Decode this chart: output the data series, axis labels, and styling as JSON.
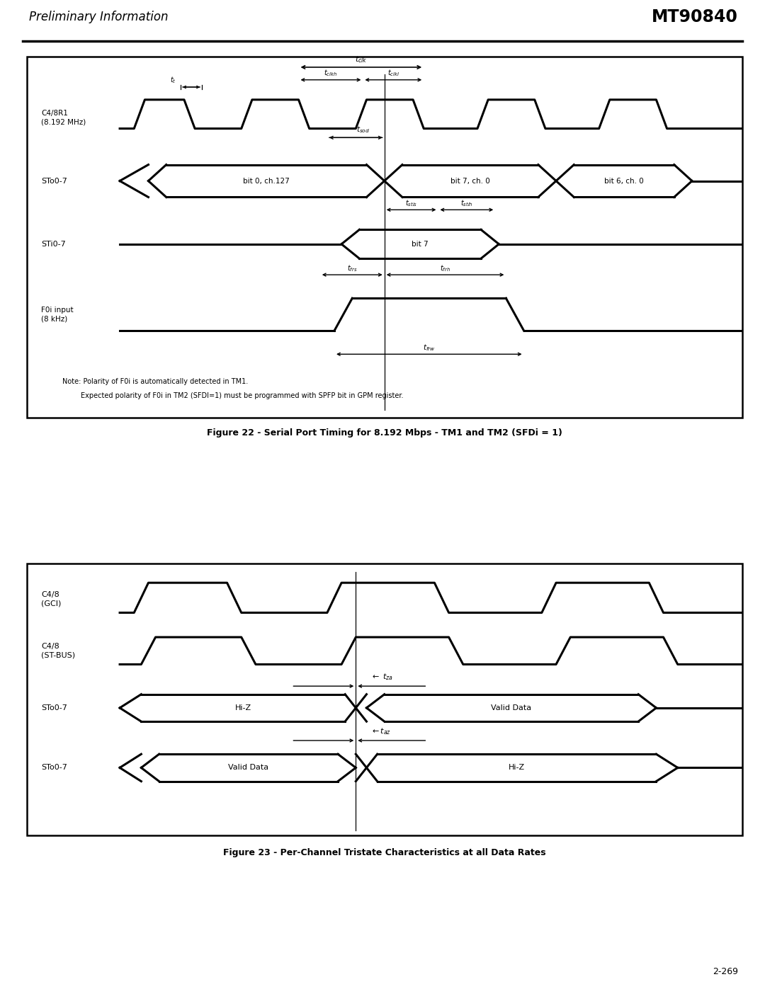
{
  "page_title_left": "Preliminary Information",
  "page_title_right": "MT90840",
  "fig1_caption": "Figure 22 - Serial Port Timing for 8.192 Mbps - TM1 and TM2 (SFDi = 1)",
  "fig2_caption": "Figure 23 - Per-Channel Tristate Characteristics at all Data Rates",
  "page_number": "2-269",
  "note_line1": "Note: Polarity of F0i is automatically detected in TM1.",
  "note_line2": "Expected polarity of F0i in TM2 (SFDI=1) must be programmed with SPFP bit in GPM register.",
  "bg_color": "#ffffff",
  "line_color": "#000000"
}
